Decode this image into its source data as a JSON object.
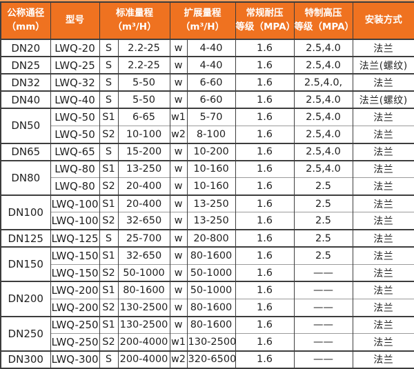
{
  "colors": {
    "header_bg": "#EF7220",
    "header_top_strip": "#F6A05B",
    "header_text": "#FFFFFF",
    "grid_dark": "#3C3C3C",
    "grid_light": "#9A9A9A",
    "body_text": "#1F1F1F",
    "body_bg": "#FFFFFF"
  },
  "table": {
    "headers": {
      "nominal_diameter": "公称通径\n（mm）",
      "model": "型号",
      "standard_range": "标准量程\n（m³/H）",
      "extended_range": "扩展量程\n（m³/H）",
      "standard_pressure": "常规耐压\n等级（MPA）",
      "high_pressure": "特制高压\n等级（MPA）",
      "installation": "安装方式"
    },
    "groups": [
      {
        "dn": "DN20",
        "rows": [
          [
            "LWQ-20",
            "S",
            "2.2-25",
            "w",
            "4-40",
            "1.6",
            "2.5,4.0",
            "法兰"
          ]
        ]
      },
      {
        "dn": "DN25",
        "rows": [
          [
            "LWQ-25",
            "S",
            "2.2-25",
            "w",
            "4-40",
            "1.6",
            "2.5,4.0",
            "法兰(螺纹)"
          ]
        ]
      },
      {
        "dn": "DN32",
        "rows": [
          [
            "LWQ-32",
            "S",
            "5-50",
            "w",
            "6-60",
            "1.6",
            "2.5,4.0,",
            "法兰"
          ]
        ]
      },
      {
        "dn": "DN40",
        "rows": [
          [
            "LWQ-40",
            "S",
            "5-50",
            "w",
            "6-60",
            "1.6",
            "2.5,4.0",
            "法兰(螺纹)"
          ]
        ]
      },
      {
        "dn": "DN50",
        "rows": [
          [
            "LWQ-50",
            "S1",
            "6-65",
            "w1",
            "5-70",
            "1.6",
            "2.5,4.0",
            "法兰"
          ],
          [
            "LWQ-50",
            "S2",
            "10-100",
            "w2",
            "8-100",
            "1.6",
            "2.5,4.0",
            "法兰"
          ]
        ]
      },
      {
        "dn": "DN65",
        "rows": [
          [
            "LWQ-65",
            "S",
            "15-200",
            "w",
            "10-200",
            "1.6",
            "2.5,4.0",
            "法兰"
          ]
        ]
      },
      {
        "dn": "DN80",
        "rows": [
          [
            "LWQ-80",
            "S1",
            "13-250",
            "w",
            "10-160",
            "1.6",
            "2.5,4.0",
            "法兰"
          ],
          [
            "LWQ-80",
            "S2",
            "20-400",
            "w",
            "10-160",
            "1.6",
            "2.5",
            "法兰"
          ]
        ]
      },
      {
        "dn": "DN100",
        "rows": [
          [
            "LWQ-100",
            "S1",
            "20-400",
            "w",
            "13-250",
            "1.6",
            "2.5",
            "法兰"
          ],
          [
            "LWQ-100",
            "S2",
            "32-650",
            "w",
            "13-250",
            "1.6",
            "2.5",
            "法兰"
          ]
        ]
      },
      {
        "dn": "DN125",
        "rows": [
          [
            "LWQ-125",
            "S",
            "25-700",
            "w",
            "20-800",
            "1.6",
            "2.5",
            "法兰"
          ]
        ]
      },
      {
        "dn": "DN150",
        "rows": [
          [
            "LWQ-150",
            "S1",
            "32-650",
            "w",
            "80-1600",
            "1.6",
            "2.5",
            "法兰"
          ],
          [
            "LWQ-150",
            "S2",
            "50-1000",
            "w",
            "50-1000",
            "1.6",
            "——",
            "法兰"
          ]
        ]
      },
      {
        "dn": "DN200",
        "rows": [
          [
            "LWQ-200",
            "S1",
            "80-1600",
            "w",
            "50-1000",
            "1.6",
            "——",
            "法兰"
          ],
          [
            "LWQ-200",
            "S2",
            "130-2500",
            "w",
            "80-1600",
            "1.6",
            "——",
            "法兰"
          ]
        ]
      },
      {
        "dn": "DN250",
        "rows": [
          [
            "LWQ-250",
            "S1",
            "130-2500",
            "w",
            "80-1600",
            "1.6",
            "——",
            "法兰"
          ],
          [
            "LWQ-250",
            "S2",
            "200-4000",
            "w1",
            "130-2500",
            "1.6",
            "——",
            "法兰"
          ]
        ]
      },
      {
        "dn": "DN300",
        "rows": [
          [
            "LWQ-300",
            "S",
            "200-4000",
            "w2",
            "320-6500",
            "1.6",
            "——",
            "法兰"
          ]
        ]
      }
    ]
  }
}
